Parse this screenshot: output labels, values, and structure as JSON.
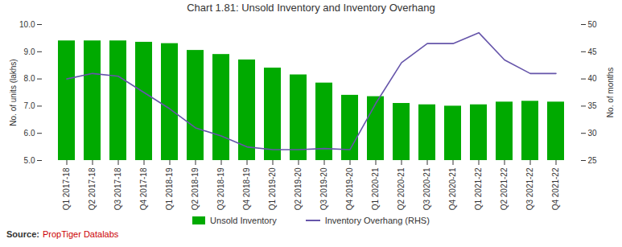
{
  "chart_data": {
    "type": "bar",
    "title": "Chart 1.81: Unsold Inventory and Inventory Overhang",
    "categories": [
      "Q1 2017-18",
      "Q2 2017-18",
      "Q3 2017-18",
      "Q4 2017-18",
      "Q1 2018-19",
      "Q2 2018-19",
      "Q3 2018-19",
      "Q4 2018-19",
      "Q1 2019-20",
      "Q2 2019-20",
      "Q3 2019-20",
      "Q4 2019-20",
      "Q1 2020-21",
      "Q2 2020-21",
      "Q3 2020-21",
      "Q4 2020-21",
      "Q1 2021-22",
      "Q2 2021-22",
      "Q3 2021-22",
      "Q4 2021-22"
    ],
    "series": [
      {
        "name": "Unsold Inventory",
        "type": "bar",
        "color": "#00aa00",
        "values": [
          9.4,
          9.4,
          9.4,
          9.35,
          9.3,
          9.05,
          8.9,
          8.7,
          8.4,
          8.15,
          7.85,
          7.4,
          7.35,
          7.1,
          7.05,
          7.0,
          7.05,
          7.15,
          7.18,
          7.15
        ]
      },
      {
        "name": "Inventory Overhang (RHS)",
        "type": "line",
        "color": "#6655aa",
        "axis": "y2",
        "values": [
          40.0,
          41.0,
          40.5,
          37.5,
          34.5,
          31.0,
          29.5,
          27.5,
          27.0,
          27.0,
          27.2,
          27.0,
          35.5,
          43.0,
          46.5,
          46.5,
          48.5,
          43.5,
          41.0,
          41.0
        ]
      }
    ],
    "ylabel": "No. of units (lakhs)",
    "y2label": "No. of months",
    "ylim": [
      5,
      10
    ],
    "yticks": [
      5,
      6,
      7,
      8,
      9,
      10
    ],
    "y2lim": [
      25,
      50
    ],
    "y2ticks": [
      25,
      30,
      35,
      40,
      45,
      50
    ],
    "grid": false,
    "legend": "bottom",
    "annotations": [
      {
        "text": "Source:"
      },
      {
        "text": "PropTiger Datalabs",
        "color": "#cc0000"
      }
    ]
  }
}
